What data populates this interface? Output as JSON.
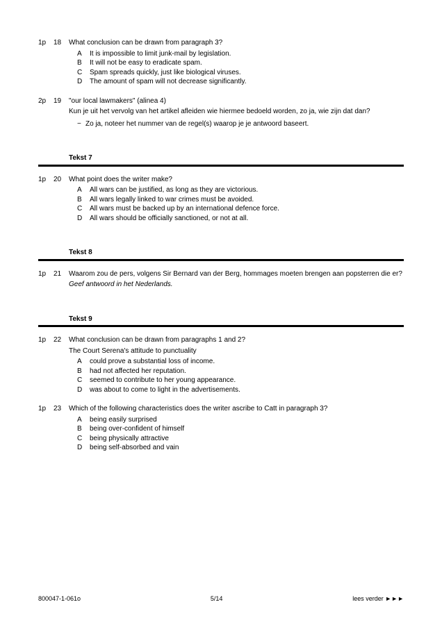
{
  "questions": [
    {
      "marker": "1p",
      "num": "18",
      "text": "What conclusion can be drawn from paragraph 3?",
      "options": [
        {
          "l": "A",
          "t": "It is impossible to limit junk-mail by legislation."
        },
        {
          "l": "B",
          "t": "It will not be easy to eradicate spam."
        },
        {
          "l": "C",
          "t": "Spam spreads quickly, just like biological viruses."
        },
        {
          "l": "D",
          "t": "The amount of spam will not decrease significantly."
        }
      ]
    },
    {
      "marker": "2p",
      "num": "19",
      "text": "\"our local lawmakers\" (alinea 4)",
      "subtext": "Kun je uit het vervolg van het artikel afleiden wie hiermee bedoeld worden, zo ja, wie zijn dat dan?",
      "bullets": [
        "Zo ja, noteer het nummer van de regel(s) waarop je je antwoord baseert."
      ]
    }
  ],
  "section7": {
    "label": "Tekst 7",
    "q": {
      "marker": "1p",
      "num": "20",
      "text": "What point does the writer make?",
      "options": [
        {
          "l": "A",
          "t": "All wars can be justified, as long as they are victorious."
        },
        {
          "l": "B",
          "t": "All wars legally linked to war crimes must be avoided."
        },
        {
          "l": "C",
          "t": "All wars must be backed up by an international defence force."
        },
        {
          "l": "D",
          "t": "All wars should be officially sanctioned, or not at all."
        }
      ]
    }
  },
  "section8": {
    "label": "Tekst 8",
    "q": {
      "marker": "1p",
      "num": "21",
      "text": "Waarom zou de pers, volgens Sir Bernard van der Berg, hommages moeten brengen aan popsterren die er?",
      "instruction": "Geef antwoord in het Nederlands."
    }
  },
  "section9": {
    "label": "Tekst 9",
    "questions": [
      {
        "marker": "1p",
        "num": "22",
        "text": "What conclusion can be drawn from paragraphs 1 and 2?",
        "lead": "The Court Serena's attitude to punctuality",
        "options": [
          {
            "l": "A",
            "t": "could prove a substantial loss of income."
          },
          {
            "l": "B",
            "t": "had not affected her reputation."
          },
          {
            "l": "C",
            "t": "seemed to contribute to her young appearance."
          },
          {
            "l": "D",
            "t": "was about to come to light in the advertisements."
          }
        ]
      },
      {
        "marker": "1p",
        "num": "23",
        "text": "Which of the following characteristics does the writer ascribe to Catt in paragraph 3?",
        "options": [
          {
            "l": "A",
            "t": "being easily surprised"
          },
          {
            "l": "B",
            "t": "being over-confident of himself"
          },
          {
            "l": "C",
            "t": "being physically attractive"
          },
          {
            "l": "D",
            "t": "being self-absorbed and vain"
          }
        ]
      }
    ]
  },
  "footer": {
    "left": "800047-1-061o",
    "center": "5/14",
    "right": "lees verder ►►►"
  },
  "colors": {
    "rule": "#000000",
    "bg": "#ffffff",
    "text": "#000000"
  }
}
